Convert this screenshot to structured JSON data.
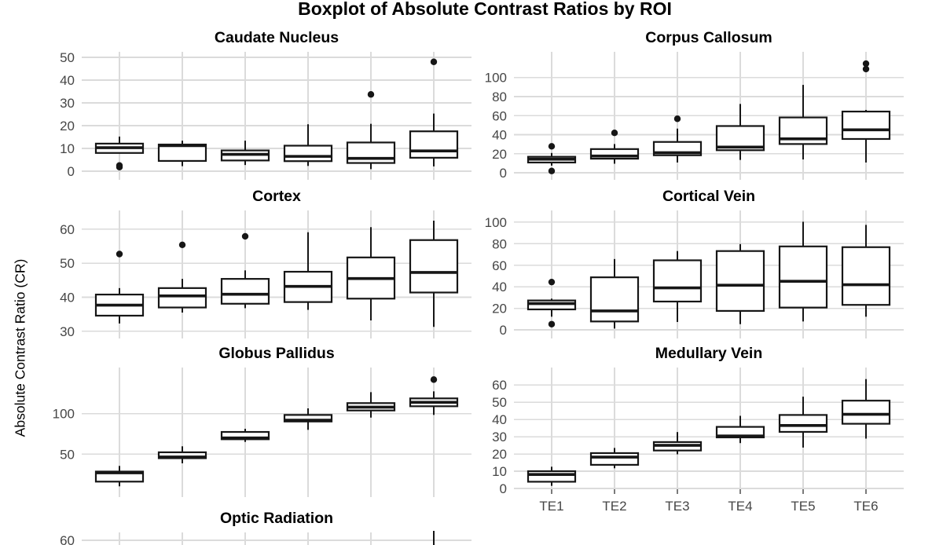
{
  "chart_data": {
    "type": "boxplot",
    "title": "Boxplot of Absolute Contrast Ratios by ROI",
    "ylabel": "Absolute Contrast Ratio (CR)",
    "categories": [
      "TE1",
      "TE2",
      "TE3",
      "TE4",
      "TE5",
      "TE6"
    ],
    "legend": "none",
    "grid": true,
    "colors": {
      "box_stroke": "#161616",
      "box_fill": "#ffffff",
      "gridline": "#dbdbdb",
      "tick_label": "#464646",
      "title": "#000000"
    },
    "panels": [
      {
        "title": "Caudate Nucleus",
        "column": "left",
        "row": 0,
        "yticks": [
          0,
          10,
          20,
          30,
          40,
          50
        ],
        "ylim": [
          -3.8,
          52.4
        ],
        "boxes": [
          {
            "whisker_low": 8.0,
            "q1": 8.0,
            "median": 10.3,
            "q3": 12.1,
            "whisker_high": 15.2,
            "outliers": [
              1.8,
              2.5
            ]
          },
          {
            "whisker_low": 2.2,
            "q1": 4.5,
            "median": 11.2,
            "q3": 11.7,
            "whisker_high": 13.4,
            "outliers": []
          },
          {
            "whisker_low": 2.7,
            "q1": 4.7,
            "median": 7.4,
            "q3": 9.1,
            "whisker_high": 13.4,
            "outliers": []
          },
          {
            "whisker_low": 2.3,
            "q1": 4.4,
            "median": 6.5,
            "q3": 11.2,
            "whisker_high": 20.6,
            "outliers": []
          },
          {
            "whisker_low": 0.9,
            "q1": 3.6,
            "median": 5.6,
            "q3": 12.6,
            "whisker_high": 20.8,
            "outliers": [
              33.7
            ]
          },
          {
            "whisker_low": 2.1,
            "q1": 5.9,
            "median": 8.9,
            "q3": 17.5,
            "whisker_high": 25.3,
            "outliers": [
              48.0
            ]
          }
        ]
      },
      {
        "title": "Corpus Callosum",
        "column": "right",
        "row": 0,
        "yticks": [
          0,
          20,
          40,
          60,
          80,
          100
        ],
        "ylim": [
          -7.4,
          127.0
        ],
        "boxes": [
          {
            "whisker_low": 7.5,
            "q1": 10.8,
            "median": 14.3,
            "q3": 16.8,
            "whisker_high": 20.8,
            "outliers": [
              27.8,
              1.9
            ]
          },
          {
            "whisker_low": 9.5,
            "q1": 14.8,
            "median": 17.6,
            "q3": 24.9,
            "whisker_high": 30.2,
            "outliers": [
              41.9
            ]
          },
          {
            "whisker_low": 10.8,
            "q1": 18.4,
            "median": 21.1,
            "q3": 32.4,
            "whisker_high": 46.4,
            "outliers": [
              56.7
            ]
          },
          {
            "whisker_low": 13.5,
            "q1": 23.7,
            "median": 27.0,
            "q3": 49.1,
            "whisker_high": 72.3,
            "outliers": []
          },
          {
            "whisker_low": 14.0,
            "q1": 30.2,
            "median": 35.6,
            "q3": 58.1,
            "whisker_high": 92.3,
            "outliers": []
          },
          {
            "whisker_low": 10.8,
            "q1": 35.5,
            "median": 45.1,
            "q3": 64.3,
            "whisker_high": 66.0,
            "outliers": [
              108.9,
              114.6
            ]
          }
        ]
      },
      {
        "title": "Cortex",
        "column": "left",
        "row": 1,
        "yticks": [
          30,
          40,
          50,
          60
        ],
        "ylim": [
          27.9,
          65.5
        ],
        "boxes": [
          {
            "whisker_low": 32.3,
            "q1": 34.6,
            "median": 37.7,
            "q3": 40.8,
            "whisker_high": 42.7,
            "outliers": [
              52.7
            ]
          },
          {
            "whisker_low": 35.5,
            "q1": 37.0,
            "median": 40.4,
            "q3": 42.7,
            "whisker_high": 45.4,
            "outliers": [
              55.4
            ]
          },
          {
            "whisker_low": 36.8,
            "q1": 38.1,
            "median": 40.9,
            "q3": 45.4,
            "whisker_high": 47.9,
            "outliers": [
              57.9
            ]
          },
          {
            "whisker_low": 36.3,
            "q1": 38.6,
            "median": 43.2,
            "q3": 47.5,
            "whisker_high": 59.1,
            "outliers": []
          },
          {
            "whisker_low": 33.2,
            "q1": 39.6,
            "median": 45.5,
            "q3": 51.7,
            "whisker_high": 60.6,
            "outliers": []
          },
          {
            "whisker_low": 31.3,
            "q1": 41.4,
            "median": 47.3,
            "q3": 56.8,
            "whisker_high": 62.5,
            "outliers": []
          }
        ]
      },
      {
        "title": "Cortical Vein",
        "column": "right",
        "row": 1,
        "yticks": [
          0,
          20,
          40,
          60,
          80,
          100
        ],
        "ylim": [
          -8.0,
          110.9
        ],
        "boxes": [
          {
            "whisker_low": 12.2,
            "q1": 19.0,
            "median": 24.4,
            "q3": 27.3,
            "whisker_high": 29.0,
            "outliers": [
              44.4,
              5.3
            ]
          },
          {
            "whisker_low": 1.2,
            "q1": 7.8,
            "median": 17.6,
            "q3": 48.8,
            "whisker_high": 65.8,
            "outliers": []
          },
          {
            "whisker_low": 7.3,
            "q1": 26.3,
            "median": 39.0,
            "q3": 64.6,
            "whisker_high": 73.2,
            "outliers": []
          },
          {
            "whisker_low": 5.3,
            "q1": 17.6,
            "median": 41.5,
            "q3": 73.2,
            "whisker_high": 79.7,
            "outliers": []
          },
          {
            "whisker_low": 7.8,
            "q1": 20.7,
            "median": 45.1,
            "q3": 77.5,
            "whisker_high": 100.4,
            "outliers": []
          },
          {
            "whisker_low": 12.2,
            "q1": 23.2,
            "median": 41.9,
            "q3": 76.8,
            "whisker_high": 97.5,
            "outliers": []
          }
        ]
      },
      {
        "title": "Globus Pallidus",
        "column": "left",
        "row": 2,
        "yticks": [
          50,
          100
        ],
        "ylim": [
          -3.0,
          156.9
        ],
        "boxes": [
          {
            "whisker_low": 10.3,
            "q1": 16.1,
            "median": 27.0,
            "q3": 28.5,
            "whisker_high": 35.5,
            "outliers": []
          },
          {
            "whisker_low": 38.7,
            "q1": 45.0,
            "median": 46.5,
            "q3": 52.3,
            "whisker_high": 59.7,
            "outliers": []
          },
          {
            "whisker_low": 65.1,
            "q1": 68.4,
            "median": 70.0,
            "q3": 77.4,
            "whisker_high": 81.3,
            "outliers": []
          },
          {
            "whisker_low": 80.0,
            "q1": 90.3,
            "median": 91.9,
            "q3": 98.4,
            "whisker_high": 106.5,
            "outliers": []
          },
          {
            "whisker_low": 95.1,
            "q1": 103.9,
            "median": 108.0,
            "q3": 113.0,
            "whisker_high": 126.5,
            "outliers": []
          },
          {
            "whisker_low": 98.4,
            "q1": 109.1,
            "median": 114.0,
            "q3": 118.8,
            "whisker_high": 127.5,
            "outliers": [
              142.0
            ]
          }
        ]
      },
      {
        "title": "Medullary Vein",
        "column": "right",
        "row": 2,
        "yticks": [
          0,
          10,
          20,
          30,
          40,
          50,
          60
        ],
        "ylim": [
          0,
          70.1
        ],
        "boxes": [
          {
            "whisker_low": 1.5,
            "q1": 3.9,
            "median": 8.1,
            "q3": 10.0,
            "whisker_high": 12.6,
            "outliers": []
          },
          {
            "whisker_low": 11.7,
            "q1": 13.7,
            "median": 18.2,
            "q3": 20.5,
            "whisker_high": 23.5,
            "outliers": []
          },
          {
            "whisker_low": 19.8,
            "q1": 22.0,
            "median": 25.0,
            "q3": 26.9,
            "whisker_high": 32.7,
            "outliers": []
          },
          {
            "whisker_low": 26.3,
            "q1": 29.6,
            "median": 30.4,
            "q3": 35.7,
            "whisker_high": 42.1,
            "outliers": []
          },
          {
            "whisker_low": 23.7,
            "q1": 32.8,
            "median": 36.5,
            "q3": 42.6,
            "whisker_high": 53.2,
            "outliers": []
          },
          {
            "whisker_low": 28.9,
            "q1": 37.5,
            "median": 43.0,
            "q3": 50.9,
            "whisker_high": 63.4,
            "outliers": []
          }
        ]
      },
      {
        "title": "Optic Radiation",
        "column": "left",
        "row": 3,
        "partial": true,
        "yticks": [
          60
        ],
        "ylim": [
          58.5,
          62.5
        ],
        "boxes": null,
        "visible_whisker": "TE6"
      }
    ]
  }
}
